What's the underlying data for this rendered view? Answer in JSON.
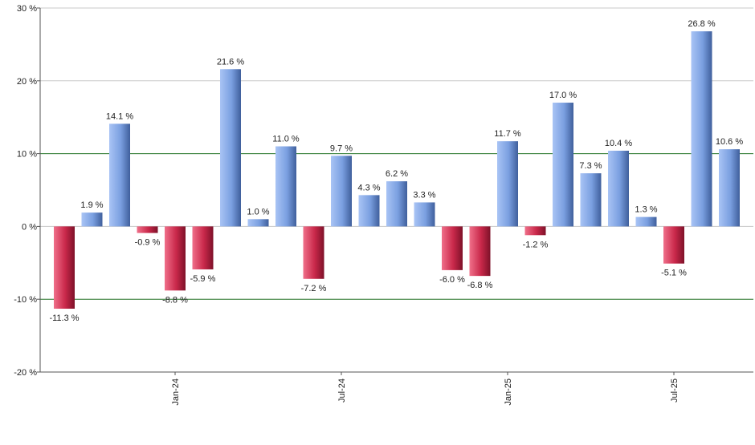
{
  "chart_data": {
    "type": "bar",
    "title": "",
    "xlabel": "",
    "ylabel": "",
    "ylim": [
      -20,
      30
    ],
    "y_ticks": [
      -20,
      -10,
      0,
      10,
      20,
      30
    ],
    "y_tick_suffix": " %",
    "value_label_suffix": " %",
    "x_tick_labels": [
      {
        "label": "Jan-24",
        "bar_index": 4
      },
      {
        "label": "Jul-24",
        "bar_index": 10
      },
      {
        "label": "Jan-25",
        "bar_index": 16
      },
      {
        "label": "Jul-25",
        "bar_index": 22
      }
    ],
    "values": [
      -11.3,
      1.9,
      14.1,
      -0.9,
      -8.8,
      -5.9,
      21.6,
      1.0,
      11.0,
      -7.2,
      9.7,
      4.3,
      6.2,
      3.3,
      -6.0,
      -6.8,
      11.7,
      -1.2,
      17.0,
      7.3,
      10.4,
      1.3,
      -5.1,
      26.8,
      10.6
    ],
    "reference_lines": [
      10,
      -10
    ],
    "grid": true,
    "colors": {
      "positive": "#7a9fe0",
      "negative": "#c9284a",
      "grid": "#c8c8c8",
      "reference": "#2e7d32",
      "axis": "#555555"
    }
  }
}
